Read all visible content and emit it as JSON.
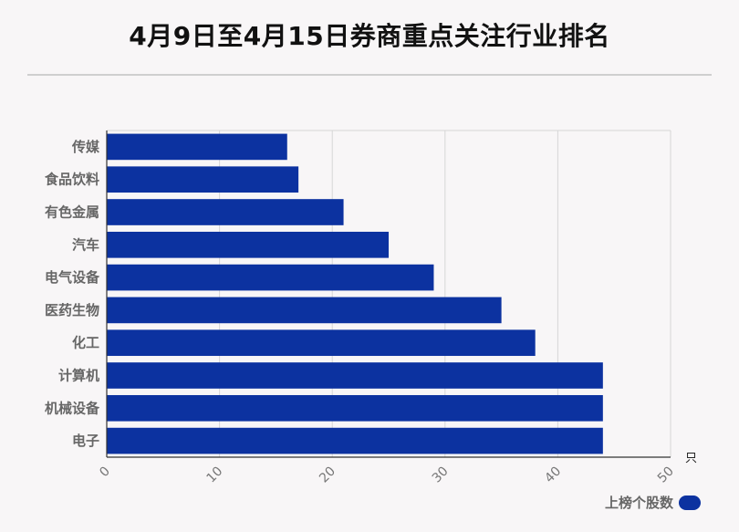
{
  "title": "4月9日至4月15日券商重点关注行业排名",
  "chart_data": {
    "type": "bar",
    "orientation": "horizontal",
    "categories": [
      "传媒",
      "食品饮料",
      "有色金属",
      "汽车",
      "电气设备",
      "医药生物",
      "化工",
      "计算机",
      "机械设备",
      "电子"
    ],
    "series": [
      {
        "name": "上榜个股数",
        "values": [
          16,
          17,
          21,
          25,
          29,
          35,
          38,
          44,
          44,
          44
        ]
      }
    ],
    "x_ticks": [
      0,
      10,
      20,
      30,
      40,
      50
    ],
    "xlim": [
      0,
      50
    ],
    "x_unit": "只",
    "grid": true,
    "legend_position": "bottom-right",
    "bar_color": "#0c32a0"
  }
}
